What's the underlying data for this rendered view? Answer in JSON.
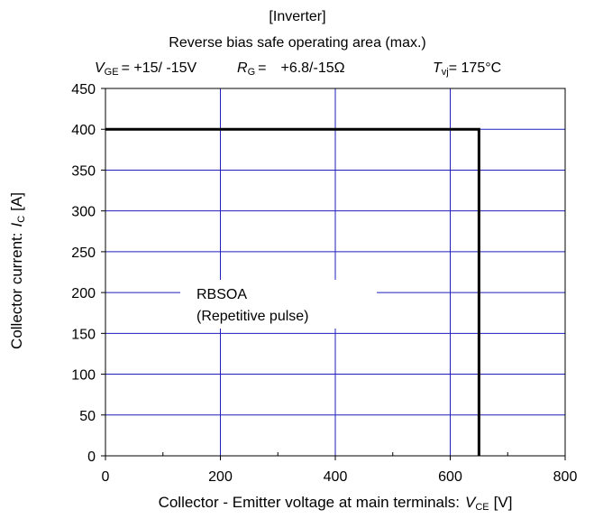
{
  "chart_data": {
    "type": "line",
    "title": "[Inverter]",
    "subtitle": "Reverse bias safe operating area (max.)",
    "conditions": [
      {
        "symbol": "V",
        "sub": "GE",
        "text": "= +15/ -15V"
      },
      {
        "symbol": "R",
        "sub": "G",
        "text": "=",
        "value": "+6.8/-15Ω"
      },
      {
        "symbol": "T",
        "sub": "vj",
        "text": "= 175°C"
      }
    ],
    "x_label": {
      "text": "Collector - Emitter voltage at main terminals:",
      "symbol": "V",
      "sub": "CE",
      "unit": "[V]"
    },
    "y_label": {
      "text": "Collector current:",
      "symbol": "I",
      "sub": "C",
      "unit": "[A]"
    },
    "annotations": [
      "RBSOA",
      "(Repetitive pulse)"
    ],
    "x": [
      0,
      650,
      650
    ],
    "series": [
      {
        "name": "RBSOA",
        "color": "#000000",
        "values": [
          400,
          400,
          0
        ]
      }
    ],
    "xlim": [
      0,
      800
    ],
    "xticks": [
      0,
      200,
      400,
      600,
      800
    ],
    "xminorticks": [
      100,
      300,
      500,
      700
    ],
    "ylim": [
      0,
      450
    ],
    "yticks": [
      0,
      50,
      100,
      150,
      200,
      250,
      300,
      350,
      400,
      450
    ],
    "grid": true,
    "grid_color": "#1f1fbf"
  }
}
